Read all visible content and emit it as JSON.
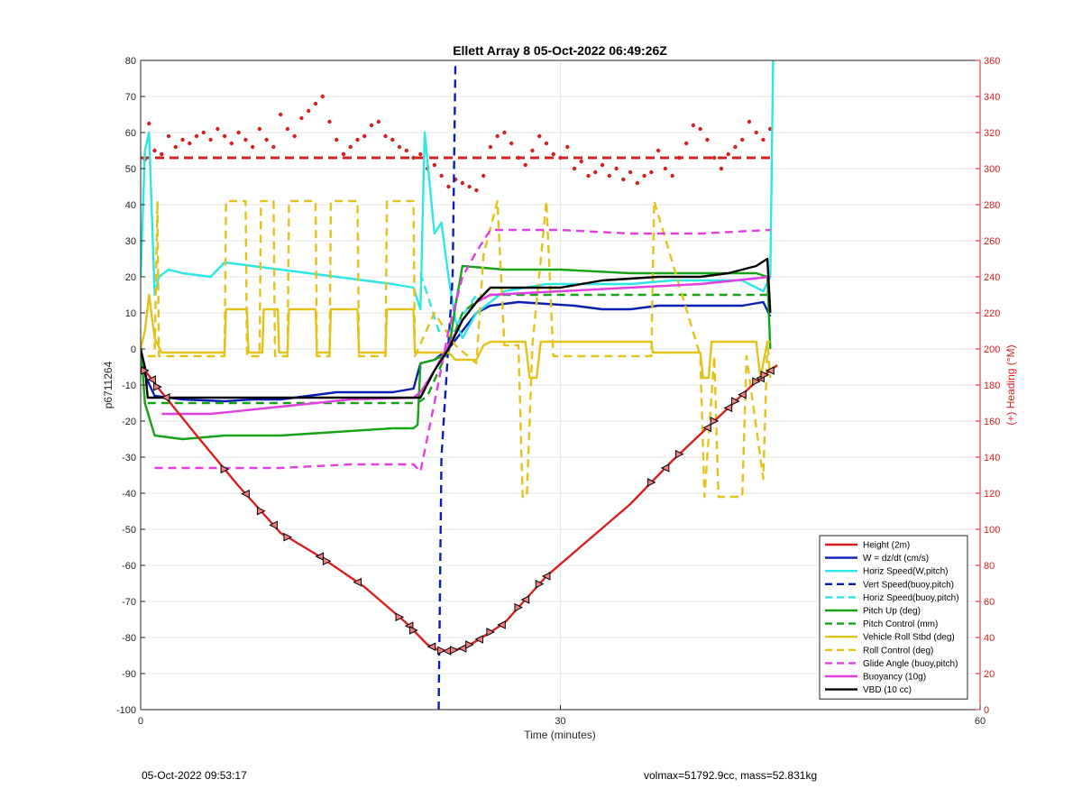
{
  "chart_data": {
    "type": "line",
    "title": "Ellett Array 8 05-Oct-2022 06:49:26Z",
    "xlabel": "Time (minutes)",
    "ylabel": "p6711264",
    "y2label": "(+) Heading (°M)",
    "xlim": [
      0,
      60
    ],
    "ylim": [
      -100,
      80
    ],
    "y2lim": [
      0,
      360
    ],
    "xticks": [
      "0",
      "30",
      "60"
    ],
    "yticks": [
      "-100",
      "-90",
      "-80",
      "-70",
      "-60",
      "-50",
      "-40",
      "-30",
      "-20",
      "-10",
      "0",
      "10",
      "20",
      "30",
      "40",
      "50",
      "60",
      "70",
      "80"
    ],
    "y2ticks": [
      "0",
      "20",
      "40",
      "60",
      "80",
      "100",
      "120",
      "140",
      "160",
      "180",
      "200",
      "220",
      "240",
      "260",
      "280",
      "300",
      "320",
      "340",
      "360"
    ],
    "grid": true,
    "legend_position": "bottom-right",
    "colors": {
      "red": "#d62020",
      "blue": "#0a1eb4",
      "cyan": "#2ee6e6",
      "green": "#17a317",
      "yellow": "#e3c21a",
      "magenta": "#e040e0",
      "black": "#000000"
    },
    "series": [
      {
        "name": "Height (2m)",
        "color": "#d62020",
        "dash": "solid",
        "x": [
          0,
          0.3,
          1.5,
          4,
          7,
          10,
          13,
          16,
          19,
          20.5,
          21.3,
          22,
          23,
          24,
          26,
          29,
          32,
          35,
          38,
          41,
          44,
          45.5
        ],
        "y": [
          -5,
          -6,
          -12,
          -24,
          -38,
          -51,
          -58,
          -66,
          -76,
          -82,
          -83.5,
          -83.8,
          -83,
          -81,
          -76,
          -63,
          -53,
          -43,
          -31,
          -20,
          -9,
          -4.5
        ]
      },
      {
        "name": "W = dz/dt (cm/s)",
        "color": "#0a1eb4",
        "dash": "solid",
        "x": [
          0,
          0.4,
          1,
          3,
          6,
          8,
          10,
          12,
          14,
          16,
          18,
          19.5,
          20,
          21,
          22,
          23,
          24,
          25,
          27,
          29,
          31,
          33,
          35,
          37,
          40,
          43,
          44.5,
          45
        ],
        "y": [
          -3,
          -8,
          -13,
          -14,
          -14.5,
          -14,
          -14,
          -13,
          -12,
          -12,
          -12,
          -11,
          -4,
          -3,
          0,
          5,
          10,
          12,
          13,
          12.5,
          12,
          11,
          11,
          12,
          12,
          12,
          13,
          9
        ]
      },
      {
        "name": "Horiz Speed(W,pitch)",
        "color": "#2ee6e6",
        "dash": "solid",
        "x": [
          0,
          0.3,
          0.6,
          1,
          1.3,
          2,
          3,
          5,
          6,
          8,
          10,
          12,
          14,
          16,
          18,
          19.5,
          20,
          20.3,
          21,
          21.5,
          22,
          22.5,
          23,
          24,
          26,
          29,
          32,
          35,
          38,
          41,
          43,
          44.5,
          45,
          45.2
        ],
        "y": [
          20,
          55,
          60,
          15,
          20,
          22,
          21,
          20,
          24,
          23,
          22,
          21,
          20,
          19,
          18,
          17,
          11,
          60,
          32,
          35,
          20,
          8,
          3,
          10,
          16,
          18,
          18,
          18,
          19,
          19,
          19,
          16,
          20,
          80
        ]
      },
      {
        "name": "Vert Speed(buoy,pitch)",
        "color": "#0a1eb4",
        "dash": "dashed",
        "x": [
          21.3,
          21.5,
          22.3,
          22.5
        ],
        "y": [
          -100,
          -30,
          20,
          80
        ]
      },
      {
        "name": "Horiz Speed(buoy,pitch)",
        "color": "#2ee6e6",
        "dash": "dashed",
        "x": [
          20,
          20.5,
          21.3,
          22.3,
          24
        ],
        "y": [
          21,
          15,
          5,
          5,
          15
        ]
      },
      {
        "name": "Pitch Up (deg)",
        "color": "#17a317",
        "dash": "solid",
        "x": [
          0,
          0.3,
          1,
          3,
          6,
          10,
          14,
          18,
          19.5,
          19.8,
          20,
          21,
          22,
          22.5,
          23,
          26,
          30,
          35,
          40,
          44,
          44.8,
          45
        ],
        "y": [
          2,
          -15,
          -24,
          -25,
          -24,
          -24,
          -23,
          -22,
          -22,
          -21,
          -4,
          -3,
          -1,
          12,
          23,
          22,
          22,
          21,
          21,
          21,
          20,
          0
        ]
      },
      {
        "name": "Pitch Control (mm)",
        "color": "#17a317",
        "dash": "dashed",
        "x": [
          0.5,
          19.8,
          20.5,
          22,
          23,
          24.5,
          30,
          45
        ],
        "y": [
          -15,
          -15,
          -13,
          0,
          10,
          15,
          15,
          15
        ]
      },
      {
        "name": "Vehicle Roll Stbd (deg)",
        "color": "#e3c21a",
        "dash": "solid",
        "x": [
          0,
          0.3,
          0.6,
          1,
          1.5,
          2,
          6,
          6.1,
          7.6,
          7.7,
          8.7,
          8.8,
          9.8,
          9.9,
          10.5,
          10.6,
          12.5,
          12.6,
          13.5,
          13.6,
          15.5,
          15.6,
          17.5,
          17.6,
          19.5,
          19.6,
          20,
          22,
          22.5,
          24,
          24.5,
          25,
          27.5,
          27.8,
          28.3,
          28.6,
          36.5,
          36.6,
          40,
          40.2,
          40.6,
          40.8,
          44,
          44.3,
          44.8,
          45
        ],
        "y": [
          0,
          5,
          15,
          3,
          -1,
          -1,
          -1,
          11,
          11,
          -1,
          -1,
          11,
          11,
          -1,
          -1,
          11,
          11,
          -1,
          -1,
          11,
          11,
          -1,
          -1,
          11,
          11,
          -1,
          -1,
          -1,
          -3,
          -3,
          1,
          2,
          2,
          -8,
          -8,
          2,
          2,
          -1,
          -1,
          -8,
          -8,
          2,
          2,
          -8,
          2,
          2
        ]
      },
      {
        "name": "Roll Control (deg)",
        "color": "#e3c21a",
        "dash": "dashed",
        "x": [
          0.5,
          1,
          1.2,
          1.3,
          6,
          6.1,
          7.5,
          7.6,
          8.5,
          8.6,
          9.5,
          9.6,
          10.5,
          10.6,
          12.5,
          12.6,
          13.5,
          13.6,
          15.5,
          15.6,
          17.5,
          17.6,
          19.5,
          19.6,
          21,
          22.5,
          24,
          24.5,
          25.5,
          26,
          27,
          27.3,
          27.6,
          28,
          29,
          29.5,
          36.5,
          36.7,
          40,
          40.3,
          41,
          41.3,
          43,
          43.3,
          44.5,
          44.8,
          45
        ],
        "y": [
          -2,
          -2,
          41,
          -2,
          -2,
          41,
          41,
          -2,
          -2,
          41,
          41,
          -2,
          -2,
          41,
          41,
          -2,
          -2,
          41,
          41,
          -2,
          -2,
          41,
          41,
          -2,
          10,
          1,
          -4,
          26,
          41,
          1,
          1,
          -41,
          -41,
          1,
          41,
          -2,
          -2,
          41,
          -2,
          -41,
          -2,
          -41,
          -41,
          -2,
          -36,
          2,
          -8
        ]
      },
      {
        "name": "Glide Angle (buoy,pitch)",
        "color": "#e040e0",
        "dash": "dashed",
        "x": [
          1,
          5,
          10,
          15,
          19.5,
          20,
          21,
          22,
          23,
          24,
          25,
          30,
          35,
          40,
          45
        ],
        "y": [
          -33,
          -33,
          -33,
          -32,
          -32,
          -34,
          -15,
          5,
          20,
          27,
          33,
          33,
          32,
          32,
          33
        ]
      },
      {
        "name": "Buoyancy (10g)",
        "color": "#e040e0",
        "dash": "solid",
        "x": [
          1.5,
          5,
          10,
          15,
          19.5,
          20,
          21,
          22,
          23,
          24,
          25,
          30,
          35,
          40,
          45
        ],
        "y": [
          -18,
          -18,
          -16,
          -14,
          -13.5,
          -12,
          -6,
          1,
          8,
          13,
          15,
          16,
          17,
          18,
          20
        ]
      },
      {
        "name": "VBD (10 cc)",
        "color": "#000000",
        "dash": "solid",
        "x": [
          0,
          0.3,
          0.5,
          19.5,
          20,
          21,
          22,
          23,
          24,
          25,
          30,
          33,
          37,
          40,
          42,
          44,
          44.8,
          45
        ],
        "y": [
          0,
          -5,
          -13.5,
          -13.5,
          -13.5,
          -6,
          0,
          8,
          13,
          17,
          17,
          19,
          20,
          20,
          21,
          23,
          25,
          10
        ]
      }
    ],
    "heading_mean": {
      "name": "heading mean",
      "color": "#d62020",
      "axis": "right",
      "value": 306,
      "x": [
        0,
        45
      ]
    },
    "heading_points": {
      "color": "#d62020",
      "axis": "right",
      "x": [
        0.3,
        0.6,
        1,
        1.5,
        2,
        2.5,
        3,
        3.5,
        4,
        4.5,
        5,
        5.5,
        6,
        6.5,
        7,
        7.5,
        8,
        8.5,
        9,
        9.5,
        10,
        10.5,
        11,
        11.5,
        12,
        12.5,
        13,
        13.5,
        14,
        14.5,
        15,
        15.5,
        16,
        16.5,
        17,
        17.5,
        18,
        18.5,
        19,
        19.5,
        20,
        20.5,
        21,
        21.5,
        22,
        22.5,
        23,
        23.5,
        24,
        24.5,
        25,
        25.5,
        26,
        26.5,
        27,
        27.5,
        28,
        28.5,
        29,
        29.5,
        30,
        30.5,
        31,
        31.5,
        32,
        32.5,
        33,
        33.5,
        34,
        34.5,
        35,
        35.5,
        36,
        36.5,
        37,
        37.5,
        38,
        38.5,
        39,
        39.5,
        40,
        40.5,
        41,
        41.5,
        42,
        42.5,
        43,
        43.5,
        44,
        44.5,
        45
      ],
      "y": [
        305,
        325,
        310,
        308,
        318,
        312,
        316,
        314,
        318,
        320,
        316,
        322,
        318,
        314,
        320,
        316,
        312,
        322,
        316,
        312,
        330,
        322,
        318,
        328,
        332,
        336,
        340,
        326,
        316,
        308,
        312,
        316,
        318,
        324,
        326,
        318,
        316,
        312,
        310,
        306,
        308,
        300,
        302,
        296,
        290,
        294,
        292,
        290,
        288,
        296,
        312,
        318,
        320,
        314,
        306,
        302,
        310,
        318,
        314,
        308,
        306,
        312,
        300,
        304,
        296,
        298,
        302,
        296,
        300,
        294,
        298,
        292,
        296,
        298,
        310,
        300,
        296,
        306,
        314,
        324,
        322,
        316,
        306,
        300,
        308,
        312,
        316,
        326,
        320,
        316,
        322
      ]
    },
    "markers": {
      "description": "triangle markers along height trace",
      "x": [
        0.3,
        0.8,
        1.2,
        1.8,
        6,
        7.5,
        8.6,
        9.5,
        10.5,
        12.8,
        13.3,
        15.5,
        18.5,
        19.2,
        19.5,
        20.8,
        21.5,
        21.9,
        22.4,
        23,
        23.5,
        24.2,
        25,
        25.8,
        27,
        27.5,
        28.5,
        29,
        36.5,
        37.5,
        38.5,
        40.5,
        41,
        42,
        42.5,
        43,
        44,
        44.3,
        44.6,
        45
      ]
    }
  },
  "footer": {
    "left": "05-Oct-2022 09:53:17",
    "right": "volmax=51792.9cc, mass=52.831kg"
  }
}
